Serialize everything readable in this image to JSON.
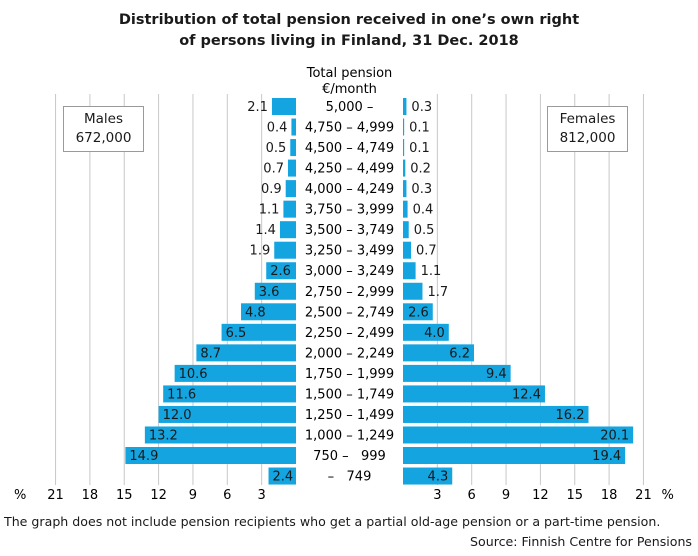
{
  "title_line1": "Distribution of total pension received in one’s own right",
  "title_line2": "of persons living in Finland, 31 Dec. 2018",
  "note": "The graph does not include pension recipients who get a partial old-age pension or a part-time pension.",
  "source": "Source: Finnish Centre for Pensions",
  "legend": {
    "males_label": "Males",
    "males_count": "672,000",
    "females_label": "Females",
    "females_count": "812,000"
  },
  "colors": {
    "bar": "#14a4e0",
    "grid": "#c8c8c8"
  },
  "chart_data": {
    "type": "bar",
    "orientation": "horizontal-population-pyramid",
    "category_header": [
      "Total pension",
      "€/month"
    ],
    "categories": [
      "5,000 –",
      "4,750 – 4,999",
      "4,500 – 4,749",
      "4,250 – 4,499",
      "4,000 – 4,249",
      "3,750 – 3,999",
      "3,500 – 3,749",
      "3,250 – 3,499",
      "3,000 – 3,249",
      "2,750 – 2,999",
      "2,500 – 2,749",
      "2,250 – 2,499",
      "2,000 – 2,249",
      "1,750 – 1,999",
      "1,500 – 1,749",
      "1,250 – 1,499",
      "1,000 – 1,249",
      "750 –   999",
      "–   749"
    ],
    "series": [
      {
        "name": "Males",
        "side": "left",
        "values": [
          2.1,
          0.4,
          0.5,
          0.7,
          0.9,
          1.1,
          1.4,
          1.9,
          2.6,
          3.6,
          4.8,
          6.5,
          8.7,
          10.6,
          11.6,
          12.0,
          13.2,
          14.9,
          2.4
        ],
        "labels": [
          "2.1",
          "0.4",
          "0.5",
          "0.7",
          "0.9",
          "1.1",
          "1.4",
          "1.9",
          "2.6",
          "3.6",
          "4.8",
          "6.5",
          "8.7",
          "10.6",
          "11.6",
          "12.0",
          "13.2",
          "14.9",
          "2.4"
        ]
      },
      {
        "name": "Females",
        "side": "right",
        "values": [
          0.3,
          0.1,
          0.1,
          0.2,
          0.3,
          0.4,
          0.5,
          0.7,
          1.1,
          1.7,
          2.6,
          4.0,
          6.2,
          9.4,
          12.4,
          16.2,
          20.1,
          19.4,
          4.3
        ],
        "labels": [
          "0.3",
          "0.1",
          "0.1",
          "0.2",
          "0.3",
          "0.4",
          "0.5",
          "0.7",
          "1.1",
          "1.7",
          "2.6",
          "4.0",
          "6.2",
          "9.4",
          "12.4",
          "16.2",
          "20.1",
          "19.4",
          "4.3"
        ]
      }
    ],
    "axis_unit": "%",
    "left_ticks": [
      "21",
      "18",
      "15",
      "12",
      "9",
      "6",
      "3"
    ],
    "right_ticks": [
      "3",
      "6",
      "9",
      "12",
      "15",
      "18",
      "21"
    ],
    "xlim": [
      0,
      21
    ],
    "grid": true
  }
}
